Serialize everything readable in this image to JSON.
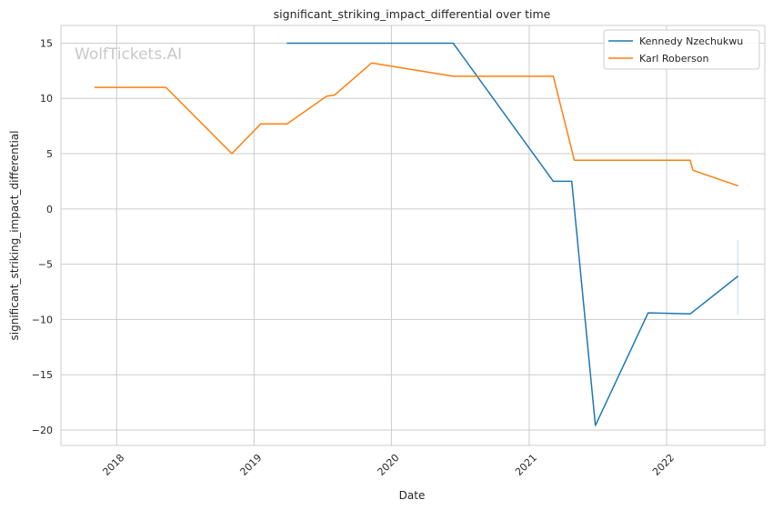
{
  "chart_data": {
    "type": "line",
    "title": "significant_striking_impact_differential over time",
    "xlabel": "Date",
    "ylabel": "significant_striking_impact_differential",
    "xlim": [
      "2017-08-06",
      "2022-09-19"
    ],
    "ylim": [
      -21.4,
      16.6
    ],
    "x_ticks": [
      "2018",
      "2019",
      "2020",
      "2021",
      "2022"
    ],
    "x_tick_dates": [
      "2018-01-01",
      "2019-01-01",
      "2020-01-01",
      "2021-01-01",
      "2022-01-01"
    ],
    "y_ticks": [
      15,
      10,
      5,
      0,
      -5,
      -10,
      -15,
      -20
    ],
    "y_tick_labels": [
      "15",
      "10",
      "5",
      "0",
      "−5",
      "−10",
      "−15",
      "−20"
    ],
    "grid": true,
    "legend_position": "top-right",
    "watermark": "WolfTickets.AI",
    "series": [
      {
        "name": "Kennedy Nzechukwu",
        "color": "#1f77b4",
        "points": [
          {
            "x": "2019-03-30",
            "y": 15.0
          },
          {
            "x": "2020-06-13",
            "y": 15.0
          },
          {
            "x": "2021-03-06",
            "y": 2.5
          },
          {
            "x": "2021-04-24",
            "y": 2.5
          },
          {
            "x": "2021-06-26",
            "y": -19.6
          },
          {
            "x": "2021-11-13",
            "y": -9.4
          },
          {
            "x": "2022-03-05",
            "y": -9.5
          },
          {
            "x": "2022-07-09",
            "y": -6.1
          }
        ],
        "error_band": {
          "x": "2022-07-09",
          "low": -9.6,
          "high": -2.8
        }
      },
      {
        "name": "Karl Roberson",
        "color": "#ff7f0e",
        "points": [
          {
            "x": "2017-11-04",
            "y": 11.0
          },
          {
            "x": "2018-05-12",
            "y": 11.0
          },
          {
            "x": "2018-11-03",
            "y": 5.0
          },
          {
            "x": "2019-01-19",
            "y": 7.7
          },
          {
            "x": "2019-03-30",
            "y": 7.7
          },
          {
            "x": "2019-07-13",
            "y": 10.2
          },
          {
            "x": "2019-08-03",
            "y": 10.3
          },
          {
            "x": "2019-11-09",
            "y": 13.2
          },
          {
            "x": "2020-06-13",
            "y": 12.0
          },
          {
            "x": "2021-03-06",
            "y": 12.0
          },
          {
            "x": "2021-05-01",
            "y": 4.4
          },
          {
            "x": "2022-03-05",
            "y": 4.4
          },
          {
            "x": "2022-03-12",
            "y": 3.5
          },
          {
            "x": "2022-07-09",
            "y": 2.1
          }
        ]
      }
    ]
  }
}
